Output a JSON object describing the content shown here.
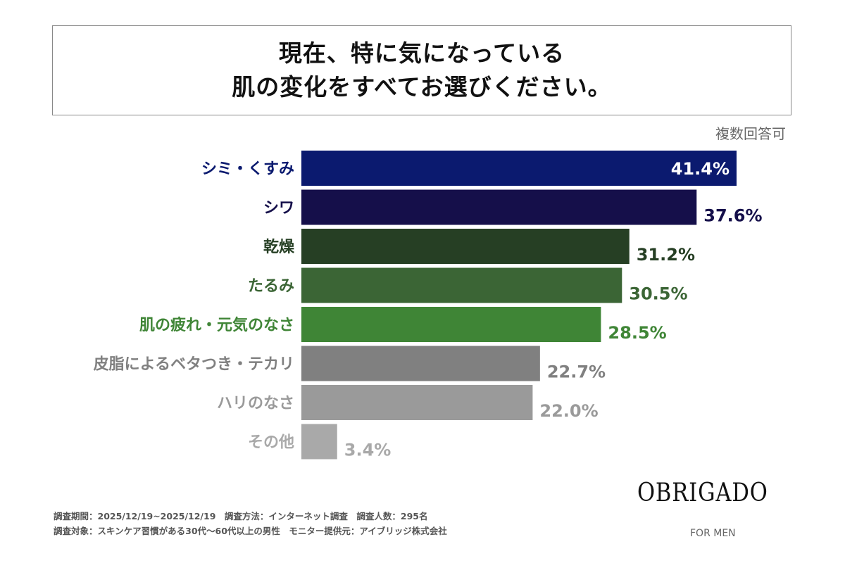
{
  "header": {
    "title_lines": [
      "現在、特に気になっている",
      "肌の変化をすべてお選びください。"
    ],
    "note": "複数回答可"
  },
  "chart_data": {
    "type": "bar",
    "orientation": "horizontal",
    "title": "現在、特に気になっている肌の変化をすべてお選びください。",
    "categories": [
      "シミ・くすみ",
      "シワ",
      "乾燥",
      "たるみ",
      "肌の疲れ・元気のなさ",
      "皮脂によるベタつき・テカリ",
      "ハリのなさ",
      "その他"
    ],
    "values": [
      41.4,
      37.6,
      31.2,
      30.5,
      28.5,
      22.7,
      22.0,
      3.4
    ],
    "value_labels": [
      "41.4%",
      "37.6%",
      "31.2%",
      "30.5%",
      "28.5%",
      "22.7%",
      "22.0%",
      "3.4%"
    ],
    "bar_colors": [
      "#0b1a6f",
      "#150f4a",
      "#263f24",
      "#3b6535",
      "#3f8536",
      "#808080",
      "#9a9a9a",
      "#a9a9a9"
    ],
    "label_colors": [
      "#0b1a6f",
      "#150f4a",
      "#263f24",
      "#3b6535",
      "#3f8536",
      "#808080",
      "#9a9a9a",
      "#a9a9a9"
    ],
    "xlim": [
      0,
      41.4
    ],
    "grid": false
  },
  "footer": {
    "survey_line1": "調査期間：2025/12/19~2025/12/19　調査方法：インターネット調査　調査人数：295名",
    "survey_line2": "調査対象：スキンケア習慣がある30代～60代以上の男性　モニター提供元：アイブリッジ株式会社",
    "logo": "OBRIGADO",
    "logo_sub": "FOR MEN"
  }
}
